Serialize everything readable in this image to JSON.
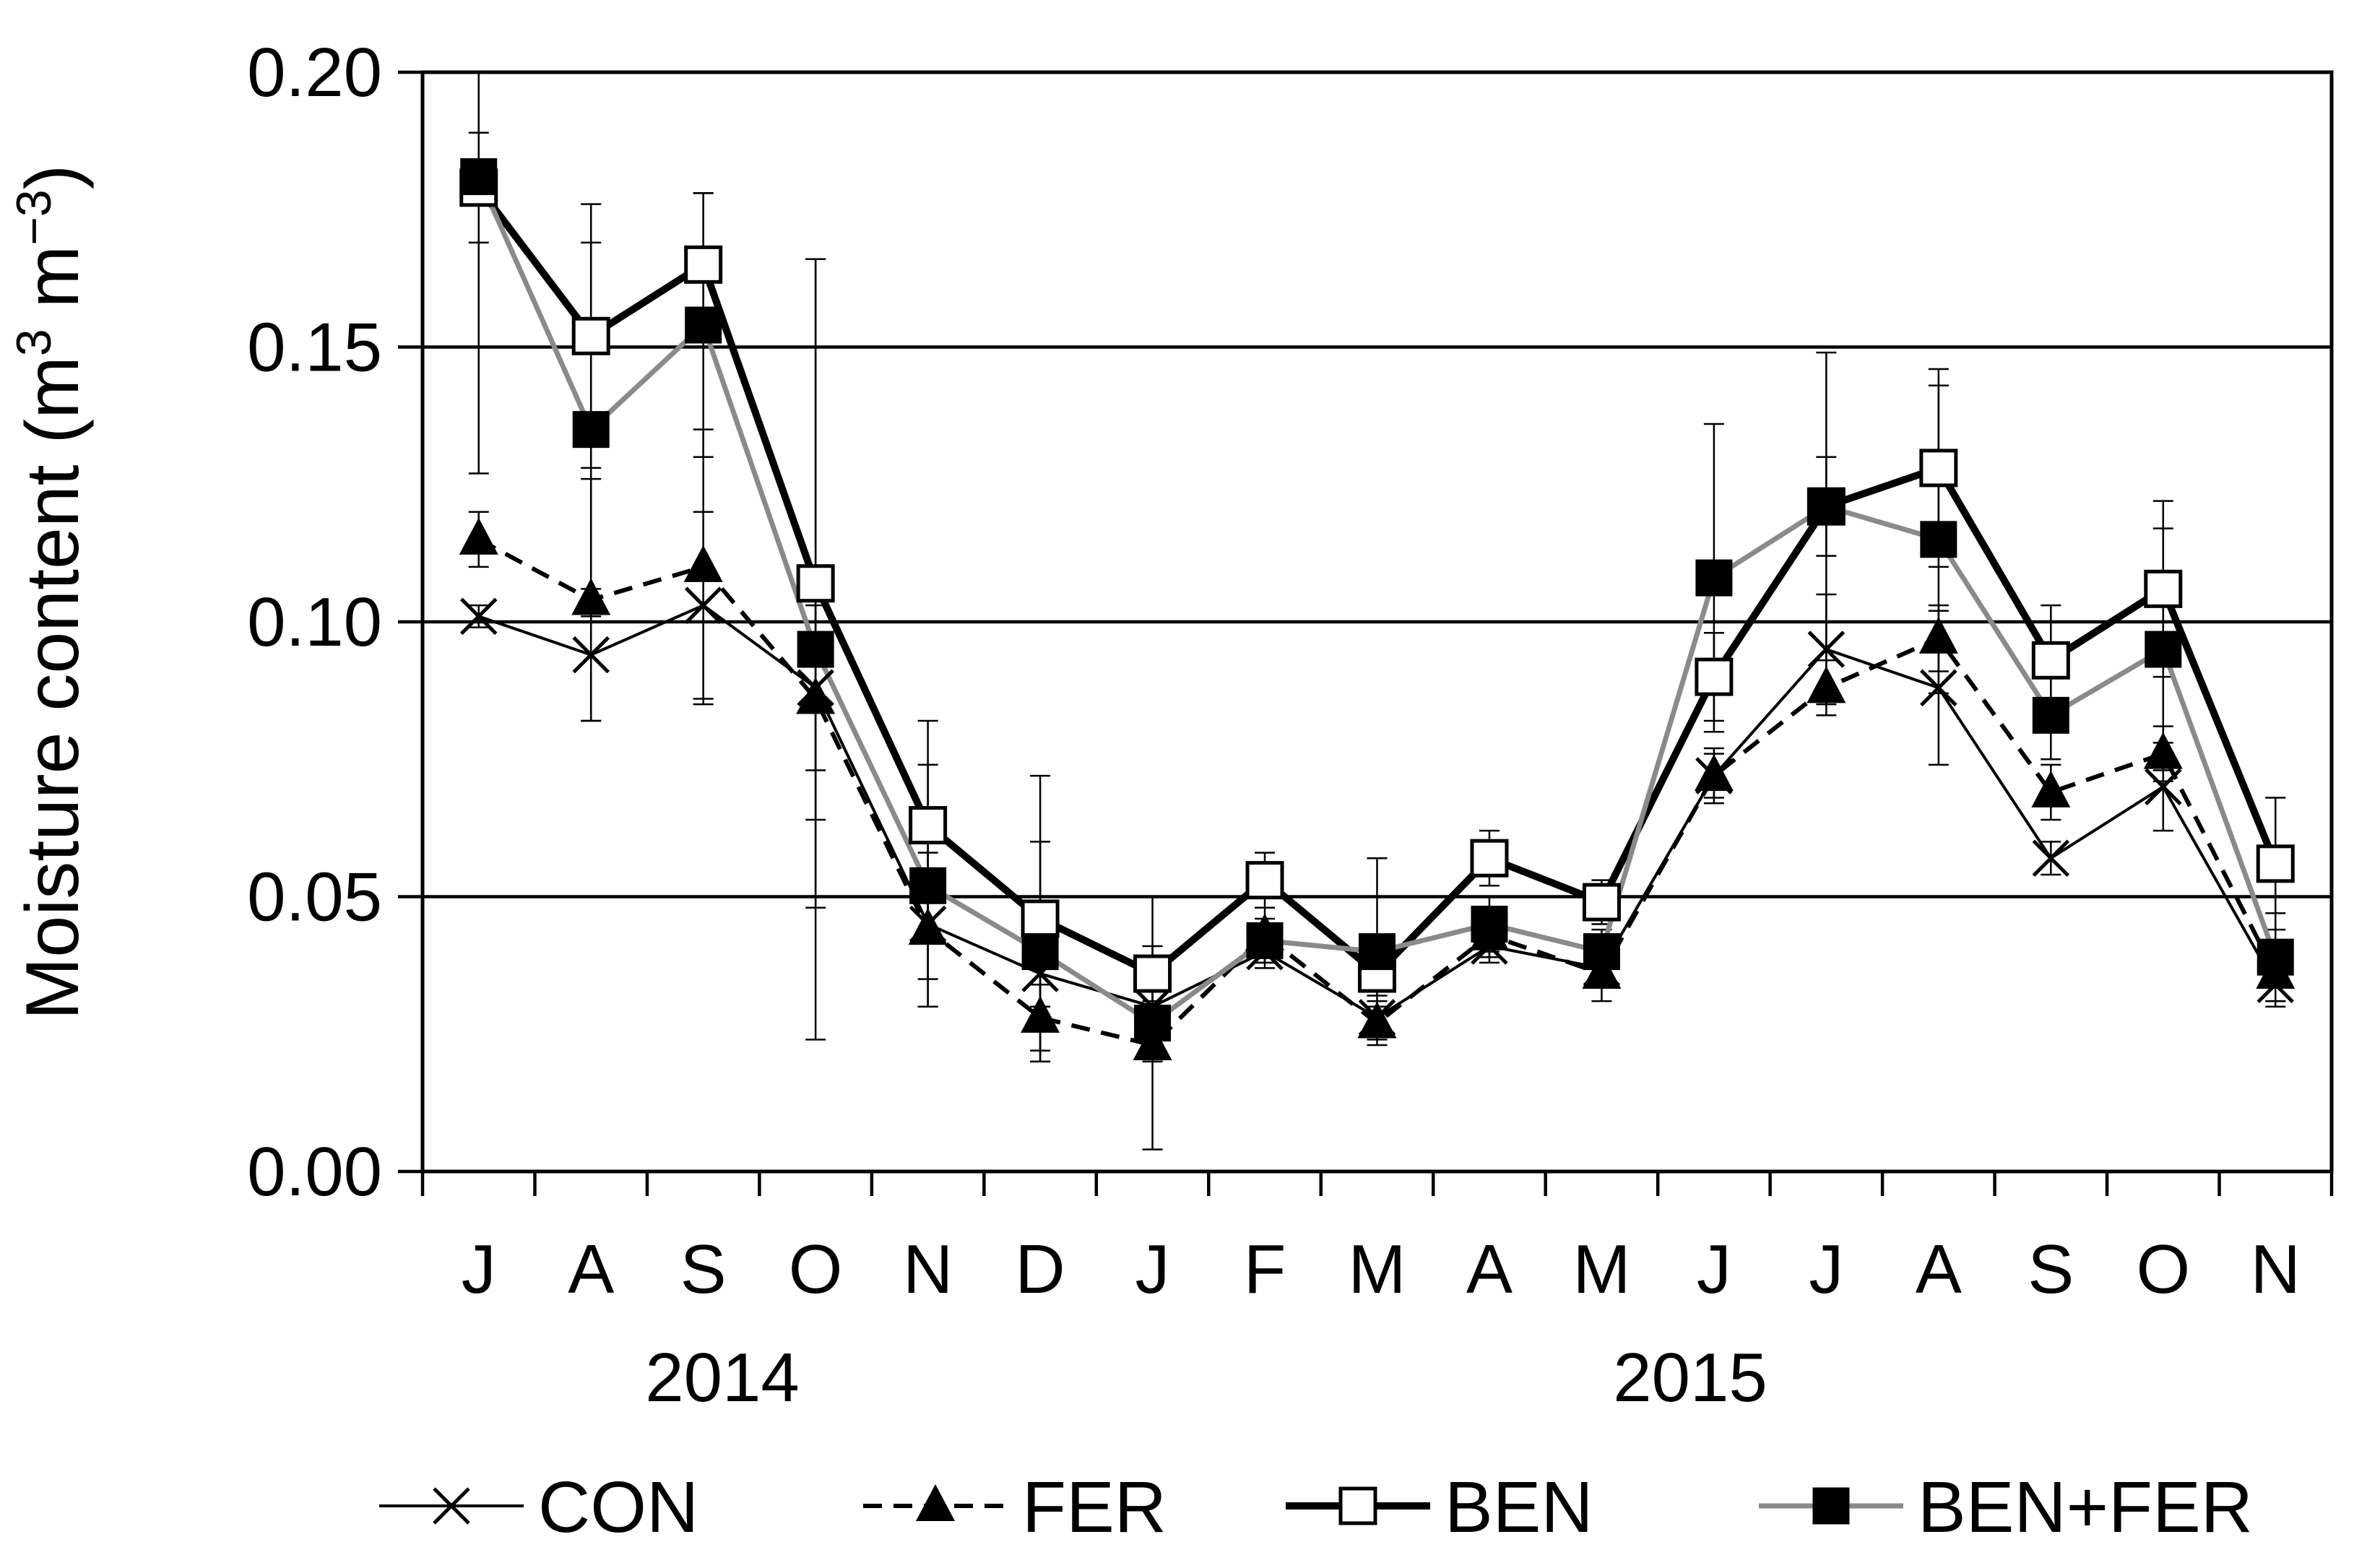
{
  "chart_data": {
    "type": "line",
    "title": "",
    "ylabel": "Moisture content (m³ m⁻³)",
    "ylabel_parts": {
      "main": "Moisture content (m",
      "exp1": "3",
      "mid": " m",
      "exp2": "−3",
      "end": ")"
    },
    "xlabel": "",
    "ylim": [
      0,
      0.2
    ],
    "yticks": [
      "0.00",
      "0.05",
      "0.10",
      "0.15",
      "0.20"
    ],
    "categories": [
      "J",
      "A",
      "S",
      "O",
      "N",
      "D",
      "J",
      "F",
      "M",
      "A",
      "M",
      "J",
      "J",
      "A",
      "S",
      "O",
      "N"
    ],
    "year_labels": [
      "2014",
      "2015"
    ],
    "grid": "horizontal",
    "legend_position": "bottom",
    "series": [
      {
        "name": "CON",
        "marker": "x",
        "line_color": "#000000",
        "line_style": "thin-solid",
        "values": [
          0.101,
          0.094,
          0.103,
          0.088,
          0.045,
          0.036,
          0.03,
          0.04,
          0.028,
          0.041,
          0.037,
          0.072,
          0.095,
          0.088,
          0.057,
          0.07,
          0.034
        ],
        "errors": [
          0.002,
          0.012,
          0.017,
          0.015,
          0.01,
          0.006,
          0.004,
          0.003,
          0.003,
          0.003,
          0.003,
          0.005,
          0.01,
          0.014,
          0.003,
          0.008,
          0.004
        ]
      },
      {
        "name": "FER",
        "marker": "triangle",
        "line_color": "#000000",
        "line_style": "dashed",
        "values": [
          0.115,
          0.104,
          0.11,
          0.086,
          0.044,
          0.028,
          0.023,
          0.043,
          0.027,
          0.043,
          0.036,
          0.072,
          0.088,
          0.097,
          0.069,
          0.076,
          0.036
        ],
        "errors": [
          0.005,
          0.022,
          0.025,
          0.022,
          0.014,
          0.006,
          0.003,
          0.005,
          0.003,
          0.004,
          0.005,
          0.004,
          0.005,
          0.006,
          0.005,
          0.005,
          0.005
        ]
      },
      {
        "name": "BEN",
        "marker": "square-open",
        "line_color": "#000000",
        "line_style": "thick-solid",
        "values": [
          0.179,
          0.152,
          0.165,
          0.107,
          0.063,
          0.046,
          0.036,
          0.053,
          0.036,
          0.057,
          0.049,
          0.09,
          0.121,
          0.128,
          0.093,
          0.106,
          0.056
        ],
        "errors": [
          0.01,
          0.024,
          0.013,
          0.059,
          0.019,
          0.026,
          0.005,
          0.005,
          0.004,
          0.005,
          0.004,
          0.008,
          0.009,
          0.018,
          0.01,
          0.016,
          0.012
        ]
      },
      {
        "name": "BEN+FER",
        "marker": "square-filled",
        "line_color": "#8a8a8a",
        "line_style": "medium-solid",
        "values": [
          0.181,
          0.135,
          0.154,
          0.095,
          0.052,
          0.04,
          0.027,
          0.042,
          0.04,
          0.045,
          0.04,
          0.108,
          0.121,
          0.115,
          0.083,
          0.095,
          0.039
        ],
        "errors": [
          0.054,
          0.034,
          0.024,
          0.071,
          0.022,
          0.02,
          0.023,
          0.004,
          0.017,
          0.005,
          0.004,
          0.028,
          0.028,
          0.028,
          0.008,
          0.022,
          0.008
        ]
      }
    ]
  }
}
